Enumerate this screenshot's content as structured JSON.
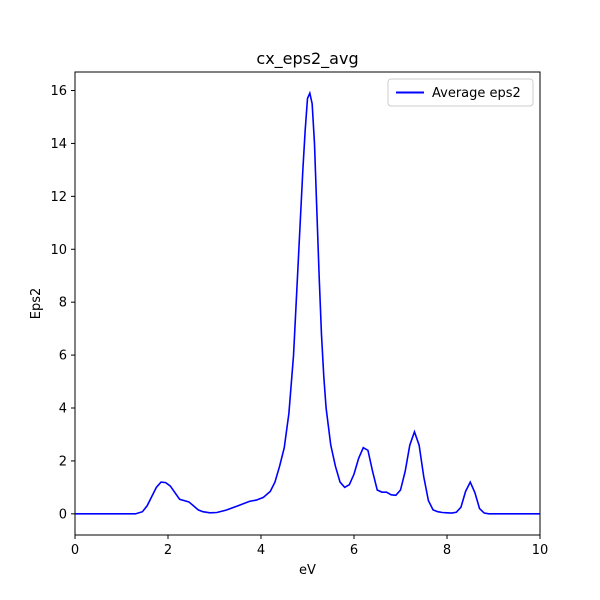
{
  "chart_data": {
    "type": "line",
    "title": "cx_eps2_avg",
    "xlabel": "eV",
    "ylabel": "Eps2",
    "xlim": [
      0,
      10
    ],
    "ylim": [
      -0.8,
      16.7
    ],
    "xticks": [
      0,
      2,
      4,
      6,
      8,
      10
    ],
    "yticks": [
      0,
      2,
      4,
      6,
      8,
      10,
      12,
      14,
      16
    ],
    "grid": false,
    "legend_position": "top-right",
    "series": [
      {
        "name": "Average eps2",
        "color": "#0000ff",
        "x": [
          0,
          1.3,
          1.45,
          1.55,
          1.65,
          1.75,
          1.85,
          1.95,
          2.05,
          2.15,
          2.25,
          2.35,
          2.45,
          2.55,
          2.65,
          2.75,
          2.9,
          3.05,
          3.25,
          3.5,
          3.75,
          3.9,
          4.05,
          4.2,
          4.3,
          4.4,
          4.5,
          4.6,
          4.7,
          4.8,
          4.9,
          4.95,
          5.0,
          5.05,
          5.1,
          5.15,
          5.2,
          5.25,
          5.3,
          5.35,
          5.4,
          5.5,
          5.6,
          5.7,
          5.8,
          5.9,
          6.0,
          6.1,
          6.2,
          6.3,
          6.4,
          6.5,
          6.6,
          6.7,
          6.8,
          6.9,
          7.0,
          7.1,
          7.2,
          7.3,
          7.4,
          7.5,
          7.6,
          7.7,
          7.8,
          7.9,
          8.0,
          8.1,
          8.2,
          8.3,
          8.4,
          8.5,
          8.6,
          8.7,
          8.8,
          8.9,
          9.0,
          10.0
        ],
        "y": [
          0.0,
          0.0,
          0.08,
          0.3,
          0.65,
          1.0,
          1.2,
          1.18,
          1.05,
          0.8,
          0.55,
          0.5,
          0.45,
          0.3,
          0.15,
          0.08,
          0.04,
          0.05,
          0.14,
          0.3,
          0.47,
          0.52,
          0.62,
          0.85,
          1.2,
          1.8,
          2.5,
          3.8,
          6.0,
          9.5,
          13.0,
          14.5,
          15.7,
          15.9,
          15.5,
          14.0,
          11.5,
          9.0,
          6.8,
          5.2,
          4.0,
          2.6,
          1.8,
          1.2,
          1.0,
          1.1,
          1.5,
          2.1,
          2.5,
          2.4,
          1.6,
          0.9,
          0.82,
          0.82,
          0.72,
          0.7,
          0.9,
          1.6,
          2.6,
          3.1,
          2.6,
          1.4,
          0.5,
          0.15,
          0.08,
          0.05,
          0.04,
          0.03,
          0.06,
          0.25,
          0.85,
          1.2,
          0.8,
          0.2,
          0.03,
          0.0,
          0.0,
          0.0
        ]
      }
    ]
  }
}
